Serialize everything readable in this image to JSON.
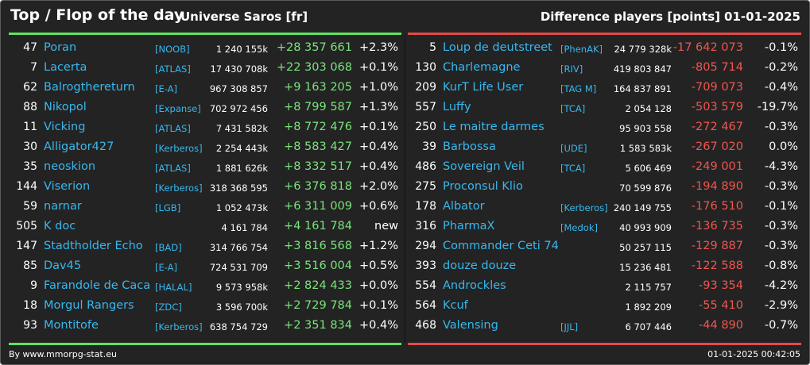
{
  "header": {
    "title": "Top / Flop of the day",
    "subtitle": "Universe Saros [fr]",
    "metric": "Difference players [points]",
    "date": "01-01-2025"
  },
  "colors": {
    "top": "#5fe35f",
    "flop": "#e34a4a",
    "link": "#37b8ef",
    "background": "#232323"
  },
  "top": [
    {
      "rank": "47",
      "name": "Poran",
      "alliance": "[NOOB]",
      "points": "1 240 155k",
      "diff": "+28 357 661",
      "pct": "+2.3%"
    },
    {
      "rank": "7",
      "name": "Lacerta",
      "alliance": "[ATLAS]",
      "points": "17 430 708k",
      "diff": "+22 303 068",
      "pct": "+0.1%"
    },
    {
      "rank": "62",
      "name": "Balrogthereturn",
      "alliance": "[E-A]",
      "points": "967 308 857",
      "diff": "+9 163 205",
      "pct": "+1.0%"
    },
    {
      "rank": "88",
      "name": "Nikopol",
      "alliance": "[Expanse]",
      "points": "702 972 456",
      "diff": "+8 799 587",
      "pct": "+1.3%"
    },
    {
      "rank": "11",
      "name": "Vicking",
      "alliance": "[ATLAS]",
      "points": "7 431 582k",
      "diff": "+8 772 476",
      "pct": "+0.1%"
    },
    {
      "rank": "30",
      "name": "Alligator427",
      "alliance": "[Kerberos]",
      "points": "2 254 443k",
      "diff": "+8 583 427",
      "pct": "+0.4%"
    },
    {
      "rank": "35",
      "name": "neoskion",
      "alliance": "[ATLAS]",
      "points": "1 881 626k",
      "diff": "+8 332 517",
      "pct": "+0.4%"
    },
    {
      "rank": "144",
      "name": "Viserion",
      "alliance": "[Kerberos]",
      "points": "318 368 595",
      "diff": "+6 376 818",
      "pct": "+2.0%"
    },
    {
      "rank": "59",
      "name": "narnar",
      "alliance": "[LGB]",
      "points": "1 052 473k",
      "diff": "+6 311 009",
      "pct": "+0.6%"
    },
    {
      "rank": "505",
      "name": "K doc",
      "alliance": "",
      "points": "4 161 784",
      "diff": "+4 161 784",
      "pct": "new"
    },
    {
      "rank": "147",
      "name": "Stadtholder Echo",
      "alliance": "[BAD]",
      "points": "314 766 754",
      "diff": "+3 816 568",
      "pct": "+1.2%"
    },
    {
      "rank": "85",
      "name": "Dav45",
      "alliance": "[E-A]",
      "points": "724 531 709",
      "diff": "+3 516 004",
      "pct": "+0.5%"
    },
    {
      "rank": "9",
      "name": "Farandole de Caca",
      "alliance": "[HALAL]",
      "points": "9 573 958k",
      "diff": "+2 824 433",
      "pct": "+0.0%"
    },
    {
      "rank": "18",
      "name": "Morgul Rangers",
      "alliance": "[ZDC]",
      "points": "3 596 700k",
      "diff": "+2 729 784",
      "pct": "+0.1%"
    },
    {
      "rank": "93",
      "name": "Montitofe",
      "alliance": "[Kerberos]",
      "points": "638 754 729",
      "diff": "+2 351 834",
      "pct": "+0.4%"
    }
  ],
  "flop": [
    {
      "rank": "5",
      "name": "Loup de deutstreet",
      "alliance": "[PhenAK]",
      "points": "24 779 328k",
      "diff": "-17 642 073",
      "pct": "-0.1%"
    },
    {
      "rank": "130",
      "name": "Charlemagne",
      "alliance": "[RIV]",
      "points": "419 803 847",
      "diff": "-805 714",
      "pct": "-0.2%"
    },
    {
      "rank": "209",
      "name": "KurT Life User",
      "alliance": "[TAG M]",
      "points": "164 837 891",
      "diff": "-709 073",
      "pct": "-0.4%"
    },
    {
      "rank": "557",
      "name": "Luffy",
      "alliance": "[TCA]",
      "points": "2 054 128",
      "diff": "-503 579",
      "pct": "-19.7%"
    },
    {
      "rank": "250",
      "name": "Le maitre darmes",
      "alliance": "",
      "points": "95 903 558",
      "diff": "-272 467",
      "pct": "-0.3%"
    },
    {
      "rank": "39",
      "name": "Barbossa",
      "alliance": "[UDE]",
      "points": "1 583 583k",
      "diff": "-267 020",
      "pct": "0.0%"
    },
    {
      "rank": "486",
      "name": "Sovereign Veil",
      "alliance": "[TCA]",
      "points": "5 606 469",
      "diff": "-249 001",
      "pct": "-4.3%"
    },
    {
      "rank": "275",
      "name": "Proconsul Klio",
      "alliance": "",
      "points": "70 599 876",
      "diff": "-194 890",
      "pct": "-0.3%"
    },
    {
      "rank": "178",
      "name": "Albator",
      "alliance": "[Kerberos]",
      "points": "240 149 755",
      "diff": "-176 510",
      "pct": "-0.1%"
    },
    {
      "rank": "316",
      "name": "PharmaX",
      "alliance": "[Medok]",
      "points": "40 993 909",
      "diff": "-136 735",
      "pct": "-0.3%"
    },
    {
      "rank": "294",
      "name": "Commander Ceti 74",
      "alliance": "",
      "points": "50 257 115",
      "diff": "-129 887",
      "pct": "-0.3%"
    },
    {
      "rank": "393",
      "name": "douze douze",
      "alliance": "",
      "points": "15 236 481",
      "diff": "-122 588",
      "pct": "-0.8%"
    },
    {
      "rank": "554",
      "name": "Androckles",
      "alliance": "",
      "points": "2 115 757",
      "diff": "-93 354",
      "pct": "-4.2%"
    },
    {
      "rank": "564",
      "name": "Kcuf",
      "alliance": "",
      "points": "1 892 209",
      "diff": "-55 410",
      "pct": "-2.9%"
    },
    {
      "rank": "468",
      "name": "Valensing",
      "alliance": "[JJL]",
      "points": "6 707 446",
      "diff": "-44 890",
      "pct": "-0.7%"
    }
  ],
  "footer": {
    "source": "By www.mmorpg-stat.eu",
    "timestamp": "01-01-2025 00:42:05"
  }
}
